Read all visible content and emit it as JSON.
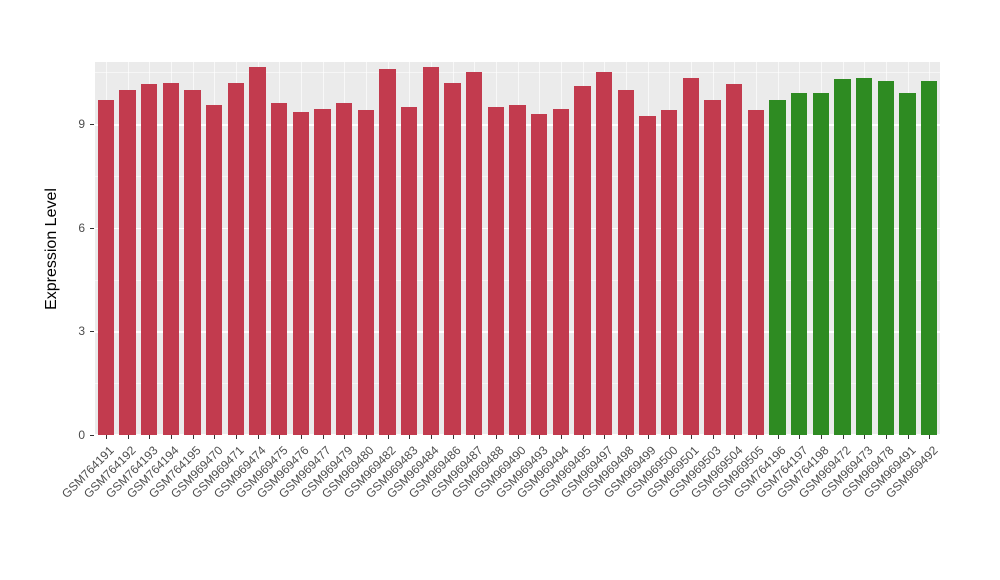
{
  "chart_data": {
    "type": "bar",
    "title": "",
    "xlabel": "",
    "ylabel": "Expression Level",
    "ylim": [
      0,
      10.8
    ],
    "yticks": [
      0,
      3,
      6,
      9
    ],
    "ytick_labels": [
      "0",
      "3",
      "6",
      "9"
    ],
    "minor_gridlines": [
      1.5,
      4.5,
      7.5,
      10.5
    ],
    "grid": "on",
    "legend": "none",
    "panel_background": "#EBEBEB",
    "gridline_color": "#FFFFFF",
    "categories": [
      "GSM764191",
      "GSM764192",
      "GSM764193",
      "GSM764194",
      "GSM764195",
      "GSM969470",
      "GSM969471",
      "GSM969474",
      "GSM969475",
      "GSM969476",
      "GSM969477",
      "GSM969479",
      "GSM969480",
      "GSM969482",
      "GSM969483",
      "GSM969484",
      "GSM969486",
      "GSM969487",
      "GSM969488",
      "GSM969490",
      "GSM969493",
      "GSM969494",
      "GSM969495",
      "GSM969497",
      "GSM969498",
      "GSM969499",
      "GSM969500",
      "GSM969501",
      "GSM969503",
      "GSM969504",
      "GSM969505",
      "GSM764196",
      "GSM764197",
      "GSM764198",
      "GSM969472",
      "GSM969473",
      "GSM969478",
      "GSM969491",
      "GSM969492"
    ],
    "values": [
      9.7,
      10.0,
      10.15,
      10.2,
      10.0,
      9.55,
      10.2,
      10.65,
      9.6,
      9.35,
      9.45,
      9.6,
      9.4,
      10.6,
      9.5,
      10.65,
      10.2,
      10.5,
      9.5,
      9.55,
      9.3,
      9.45,
      10.1,
      10.5,
      10.0,
      9.25,
      9.4,
      10.35,
      9.7,
      10.15,
      9.4,
      9.7,
      9.9,
      9.9,
      10.3,
      10.35,
      10.25,
      9.9,
      10.25
    ],
    "bar_groups": [
      "group1",
      "group1",
      "group1",
      "group1",
      "group1",
      "group1",
      "group1",
      "group1",
      "group1",
      "group1",
      "group1",
      "group1",
      "group1",
      "group1",
      "group1",
      "group1",
      "group1",
      "group1",
      "group1",
      "group1",
      "group1",
      "group1",
      "group1",
      "group1",
      "group1",
      "group1",
      "group1",
      "group1",
      "group1",
      "group1",
      "group1",
      "group2",
      "group2",
      "group2",
      "group2",
      "group2",
      "group2",
      "group2",
      "group2"
    ],
    "group_colors": {
      "group1": "#C23B4E",
      "group2": "#2E8B22"
    }
  }
}
